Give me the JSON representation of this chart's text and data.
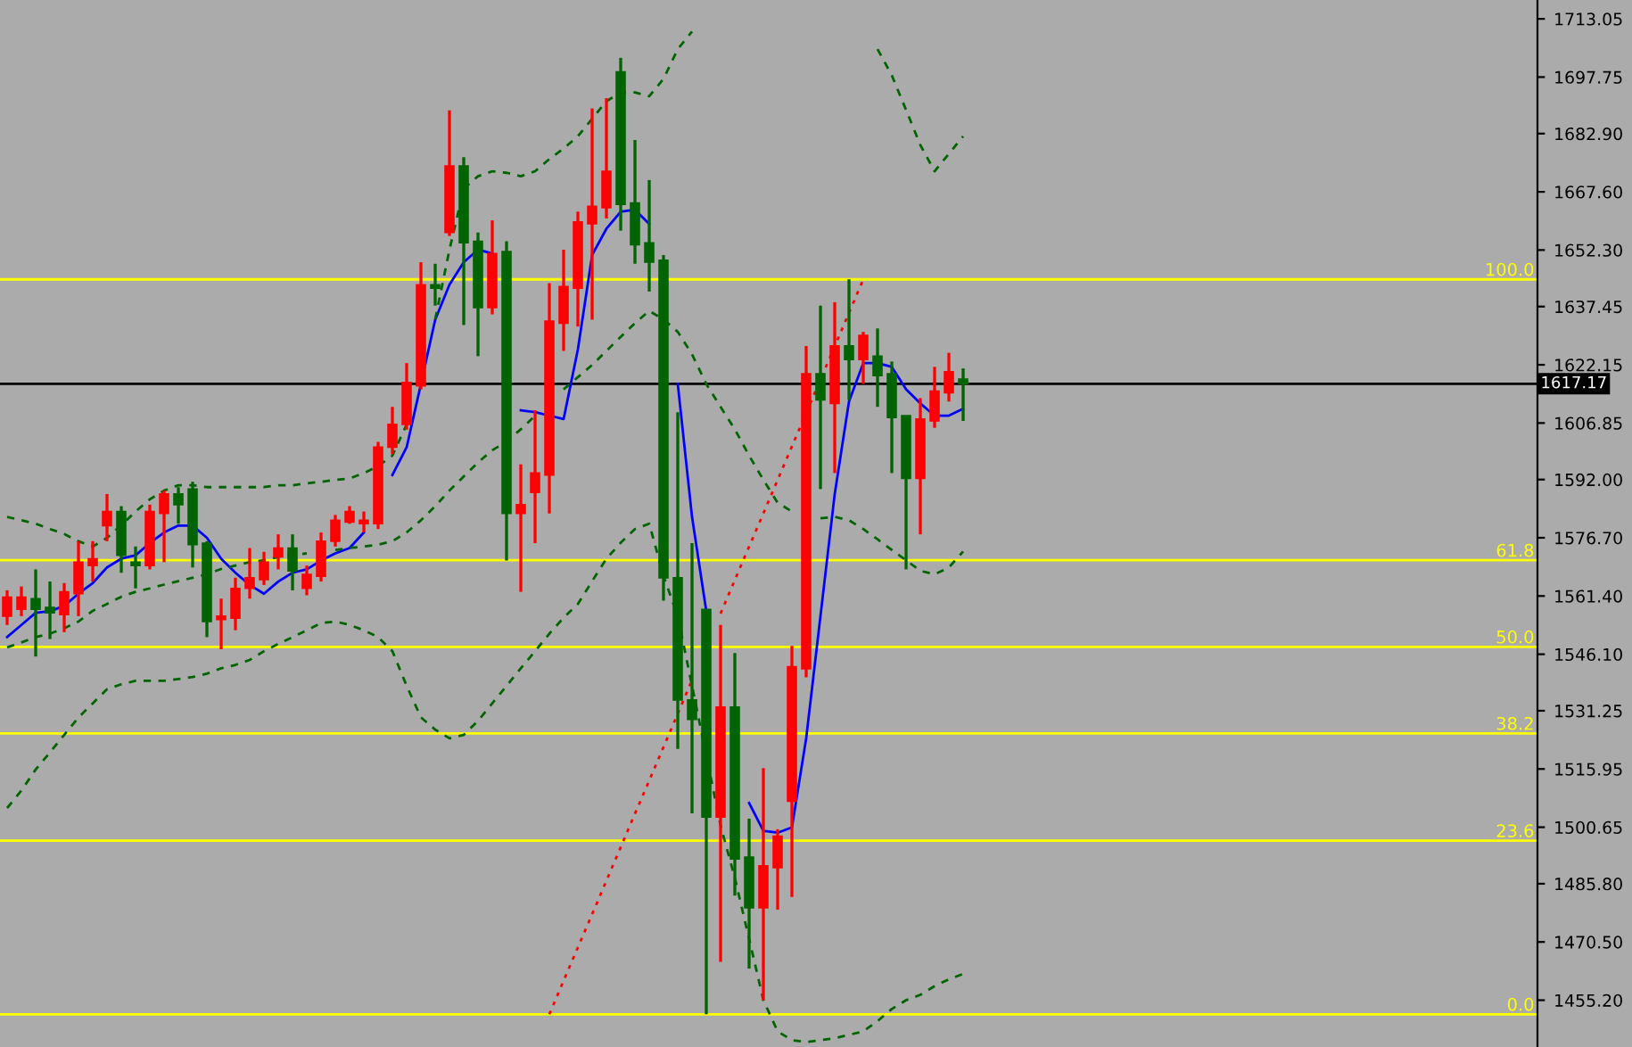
{
  "chart_data": {
    "type": "candlestick",
    "categories": [
      null,
      null,
      null,
      null,
      null,
      null,
      null,
      null,
      null,
      null,
      null,
      null,
      null,
      null,
      null,
      null,
      null,
      null,
      null,
      null,
      null,
      null,
      null,
      null,
      null,
      null,
      null,
      null,
      null,
      null,
      null,
      null,
      null,
      null,
      null,
      null,
      null,
      null,
      null,
      null,
      null,
      null,
      null,
      null,
      null,
      null,
      null,
      null,
      null,
      null,
      null,
      null,
      null,
      null,
      null,
      null,
      null,
      null,
      null,
      null,
      null,
      null,
      null,
      null,
      null,
      null,
      null,
      null
    ],
    "ohlc": [
      [
        1556.1,
        1562.9,
        1553.8,
        1561.1
      ],
      [
        1557.9,
        1563.9,
        1556.1,
        1561.1
      ],
      [
        1560.7,
        1568.4,
        1545.5,
        1557.9
      ],
      [
        1558.4,
        1565.2,
        1550.1,
        1557.0
      ],
      [
        1556.5,
        1564.8,
        1551.9,
        1562.5
      ],
      [
        1562.0,
        1575.8,
        1556.1,
        1570.3
      ],
      [
        1569.4,
        1575.8,
        1565.2,
        1571.2
      ],
      [
        1579.9,
        1588.2,
        1575.8,
        1583.6
      ],
      [
        1583.6,
        1585.0,
        1567.5,
        1572.1
      ],
      [
        1570.3,
        1574.4,
        1563.4,
        1569.4
      ],
      [
        1569.4,
        1585.4,
        1568.4,
        1583.6
      ],
      [
        1583.1,
        1589.1,
        1570.3,
        1588.2
      ],
      [
        1588.2,
        1590.0,
        1580.4,
        1585.4
      ],
      [
        1589.5,
        1591.4,
        1568.9,
        1574.9
      ],
      [
        1575.3,
        1575.8,
        1550.6,
        1554.7
      ],
      [
        1555.2,
        1560.7,
        1547.4,
        1556.1
      ],
      [
        1555.6,
        1566.2,
        1552.4,
        1563.4
      ],
      [
        1563.4,
        1574.0,
        1560.7,
        1566.2
      ],
      [
        1565.7,
        1573.0,
        1564.3,
        1570.3
      ],
      [
        1571.7,
        1577.6,
        1568.4,
        1574.0
      ],
      [
        1574.0,
        1577.6,
        1562.9,
        1568.0
      ],
      [
        1563.4,
        1569.4,
        1561.6,
        1567.1
      ],
      [
        1566.6,
        1578.1,
        1565.2,
        1575.8
      ],
      [
        1575.8,
        1582.7,
        1574.4,
        1581.3
      ],
      [
        1580.8,
        1585.0,
        1580.4,
        1583.6
      ],
      [
        1580.4,
        1583.6,
        1578.1,
        1581.3
      ],
      [
        1580.4,
        1601.9,
        1579.0,
        1600.5
      ],
      [
        1600.5,
        1611.1,
        1598.7,
        1606.5
      ],
      [
        1606.5,
        1622.6,
        1605.1,
        1617.5
      ],
      [
        1616.6,
        1649.1,
        1615.7,
        1643.2
      ],
      [
        1643.2,
        1648.7,
        1637.7,
        1642.3
      ],
      [
        1656.9,
        1689.0,
        1656.0,
        1674.4
      ],
      [
        1674.4,
        1676.7,
        1632.6,
        1654.2
      ],
      [
        1654.6,
        1656.9,
        1624.4,
        1637.2
      ],
      [
        1637.2,
        1660.1,
        1635.4,
        1651.4
      ],
      [
        1651.9,
        1654.6,
        1570.7,
        1583.1
      ],
      [
        1583.1,
        1596.0,
        1562.5,
        1585.4
      ],
      [
        1588.6,
        1610.2,
        1575.3,
        1593.7
      ],
      [
        1593.2,
        1643.6,
        1583.1,
        1633.6
      ],
      [
        1633.1,
        1652.4,
        1625.8,
        1642.7
      ],
      [
        1642.3,
        1662.4,
        1632.2,
        1659.7
      ],
      [
        1659.2,
        1689.5,
        1634.0,
        1663.8
      ],
      [
        1663.4,
        1692.2,
        1660.6,
        1673.0
      ],
      [
        1699.1,
        1702.8,
        1657.4,
        1664.3
      ],
      [
        1664.7,
        1681.2,
        1648.7,
        1653.7
      ],
      [
        1654.2,
        1670.7,
        1641.4,
        1649.1
      ],
      [
        1649.6,
        1651.0,
        1560.2,
        1566.2
      ],
      [
        1566.2,
        1609.7,
        1521.2,
        1534.1
      ],
      [
        1534.1,
        1575.3,
        1504.3,
        1529.0
      ],
      [
        1557.9,
        1557.9,
        1451.5,
        1503.3
      ],
      [
        1503.3,
        1553.8,
        1465.3,
        1532.2
      ],
      [
        1532.2,
        1546.4,
        1482.7,
        1492.3
      ],
      [
        1492.8,
        1502.9,
        1463.5,
        1479.5
      ],
      [
        1479.5,
        1516.2,
        1455.2,
        1490.5
      ],
      [
        1490.0,
        1500.1,
        1479.0,
        1498.3
      ],
      [
        1507.5,
        1548.3,
        1482.3,
        1542.8
      ],
      [
        1542.3,
        1627.1,
        1540.0,
        1619.8
      ],
      [
        1619.8,
        1637.7,
        1589.5,
        1612.9
      ],
      [
        1612.0,
        1638.6,
        1593.7,
        1627.1
      ],
      [
        1627.1,
        1644.6,
        1612.9,
        1623.5
      ],
      [
        1623.5,
        1630.8,
        1617.1,
        1629.9
      ],
      [
        1624.4,
        1631.7,
        1611.1,
        1619.3
      ],
      [
        1619.8,
        1623.0,
        1593.7,
        1608.3
      ],
      [
        1608.8,
        1608.8,
        1568.4,
        1592.3
      ],
      [
        1592.3,
        1613.4,
        1577.6,
        1607.9
      ],
      [
        1607.4,
        1621.6,
        1605.6,
        1615.2
      ],
      [
        1614.8,
        1625.3,
        1612.5,
        1620.3
      ],
      [
        1618.4,
        1621.2,
        1607.4,
        1617.2
      ]
    ],
    "colors": [
      "#ff0000",
      "#ff0000",
      "#006400",
      "#006400",
      "#ff0000",
      "#ff0000",
      "#ff0000",
      "#ff0000",
      "#006400",
      "#006400",
      "#ff0000",
      "#ff0000",
      "#006400",
      "#006400",
      "#006400",
      "#ff0000",
      "#ff0000",
      "#ff0000",
      "#ff0000",
      "#ff0000",
      "#006400",
      "#ff0000",
      "#ff0000",
      "#ff0000",
      "#ff0000",
      "#ff0000",
      "#ff0000",
      "#ff0000",
      "#ff0000",
      "#ff0000",
      "#006400",
      "#ff0000",
      "#006400",
      "#006400",
      "#ff0000",
      "#006400",
      "#ff0000",
      "#ff0000",
      "#ff0000",
      "#ff0000",
      "#ff0000",
      "#ff0000",
      "#ff0000",
      "#006400",
      "#006400",
      "#006400",
      "#006400",
      "#006400",
      "#006400",
      "#006400",
      "#ff0000",
      "#006400",
      "#006400",
      "#ff0000",
      "#ff0000",
      "#ff0000",
      "#ff0000",
      "#006400",
      "#ff0000",
      "#006400",
      "#ff0000",
      "#006400",
      "#006400",
      "#006400",
      "#ff0000",
      "#ff0000",
      "#ff0000",
      "#006400"
    ],
    "series": [
      {
        "type": "line",
        "color": "#0000ff",
        "line_style": "solid",
        "values": [
          1550.6,
          1553.8,
          1557.0,
          1557.4,
          1558.8,
          1562.0,
          1564.8,
          1568.9,
          1571.2,
          1572.1,
          1575.3,
          1578.1,
          1579.9,
          1579.9,
          1576.7,
          1571.2,
          1567.5,
          1564.3,
          1562.0,
          1565.2,
          1567.5,
          1568.4,
          1570.7,
          1572.6,
          1574.0,
          1578.1,
          null,
          1593.2,
          1600.5,
          1617.1,
          1634.0,
          1643.2,
          1649.1,
          1652.4,
          1651.4,
          null,
          1610.2,
          1609.7,
          1608.8,
          1607.9,
          1626.2,
          1651.0,
          1657.9,
          1662.4,
          1662.9,
          1659.2,
          null,
          1617.1,
          1582.2,
          1557.4,
          null,
          null,
          1507.0,
          1499.7,
          1499.2,
          1500.6,
          1524.0,
          1556.1,
          1588.2,
          1612.5,
          1622.6,
          1622.6,
          1621.6,
          1615.7,
          1612.0,
          1608.8,
          1608.8,
          1610.6
        ]
      },
      {
        "type": "line",
        "color": "#006400",
        "line_style": "dashed",
        "values": [
          1582.2,
          1581.3,
          1580.4,
          1579.0,
          1577.7,
          1575.8,
          1574.4,
          1576.7,
          1580.0,
          1583.6,
          1586.8,
          1589.1,
          1590.5,
          1590.5,
          1590.0,
          1590.0,
          1590.0,
          1590.0,
          1590.0,
          1590.5,
          1590.5,
          1591.0,
          1591.4,
          1591.9,
          1592.3,
          1593.7,
          1595.5,
          1598.3,
          1606.5,
          null,
          1634.1,
          1652.4,
          1668.4,
          1671.7,
          1673.0,
          1672.6,
          1671.7,
          1673.0,
          1676.2,
          1679.0,
          1682.2,
          1686.8,
          1691.4,
          1693.7,
          1693.7,
          1692.7,
          1697.3,
          1705.1,
          1709.7,
          null,
          null,
          null,
          null,
          null,
          null,
          null,
          null,
          null,
          null,
          null,
          null,
          1705.1,
          1698.2,
          1689.1,
          1679.9,
          1673.0,
          1677.6,
          1682.2
        ]
      },
      {
        "type": "line",
        "color": "#006400",
        "line_style": "dashed",
        "values": [
          1547.9,
          1549.2,
          1550.6,
          1551.5,
          1552.9,
          1554.7,
          1557.5,
          1559.3,
          1561.2,
          1562.5,
          1563.4,
          1564.4,
          1565.3,
          1566.2,
          1567.1,
          1568.5,
          1569.4,
          1570.3,
          1570.8,
          1571.7,
          1572.2,
          1572.6,
          null,
          1573.5,
          1574.0,
          1574.4,
          1574.9,
          1575.8,
          1578.1,
          1581.3,
          1585.0,
          1589.1,
          1592.8,
          1596.5,
          1599.7,
          1602.0,
          1605.2,
          1608.8,
          null,
          1615.7,
          1618.9,
          1622.1,
          1625.8,
          1629.5,
          1633.1,
          1636.3,
          1634.1,
          1630.8,
          1624.9,
          1617.1,
          1611.1,
          1605.2,
          1598.3,
          1591.9,
          1585.9,
          1583.6,
          null,
          1581.8,
          1582.2,
          1581.3,
          1579.0,
          1576.3,
          1573.5,
          1570.8,
          1568.0,
          1567.1,
          1568.9,
          1573.1
        ]
      },
      {
        "type": "line",
        "color": "#006400",
        "line_style": "dashed",
        "values": [
          1505.7,
          1510.3,
          1515.8,
          1520.3,
          1524.9,
          1529.5,
          1533.2,
          1536.9,
          1538.2,
          1539.1,
          1539.1,
          1539.1,
          1539.6,
          1540.1,
          1541.0,
          1542.4,
          1543.3,
          1544.6,
          1546.9,
          1548.8,
          1550.6,
          1552.4,
          1554.3,
          1554.7,
          1553.8,
          1552.4,
          1550.6,
          1546.9,
          1537.8,
          1529.5,
          1526.3,
          1524.0,
          1524.9,
          1528.6,
          1533.2,
          1537.8,
          1542.4,
          1546.9,
          1551.5,
          1555.7,
          1559.3,
          1565.3,
          1571.2,
          1575.4,
          1579.0,
          1580.4,
          1566.7,
          1556.1,
          1537.8,
          1519.4,
          1501.1,
          1487.3,
          1471.3,
          1455.2,
          1447.0,
          1444.7,
          1444.2,
          1444.7,
          1445.2,
          1446.1,
          1447.0,
          1449.7,
          1452.9,
          1455.2,
          1456.6,
          1458.9,
          1460.7,
          1462.1
        ]
      },
      {
        "type": "line",
        "color": "#ff0000",
        "line_style": "dotted",
        "values": [
          null,
          null,
          null,
          null,
          null,
          null,
          null,
          null,
          null,
          null,
          null,
          null,
          null,
          null,
          null,
          null,
          null,
          null,
          null,
          null,
          null,
          null,
          null,
          null,
          null,
          null,
          null,
          null,
          null,
          null,
          null,
          null,
          null,
          null,
          null,
          null,
          null,
          null,
          1451.5,
          1460.3,
          1469.1,
          1477.8,
          1486.6,
          1495.4,
          1504.2,
          1512.9,
          1521.7,
          1530.5,
          1539.3,
          null,
          1556.8,
          1565.6,
          1574.4,
          1583.1,
          1591.9,
          1600.7,
          1609.5,
          1618.3,
          1627.0,
          1635.8,
          1644.6,
          null,
          null,
          null,
          null,
          null,
          null,
          null
        ]
      }
    ],
    "ylim": [
      1442.9,
      1718
    ],
    "yticks": [
      {
        "value": 1455.2,
        "label": "1455.20"
      },
      {
        "value": 1470.5,
        "label": "1470.50"
      },
      {
        "value": 1485.8,
        "label": "1485.80"
      },
      {
        "value": 1500.65,
        "label": "1500.65"
      },
      {
        "value": 1515.95,
        "label": "1515.95"
      },
      {
        "value": 1531.25,
        "label": "1531.25"
      },
      {
        "value": 1546.1,
        "label": "1546.10"
      },
      {
        "value": 1561.4,
        "label": "1561.40"
      },
      {
        "value": 1576.7,
        "label": "1576.70"
      },
      {
        "value": 1592.0,
        "label": "1592.00"
      },
      {
        "value": 1606.85,
        "label": "1606.85"
      },
      {
        "value": 1622.15,
        "label": "1622.15"
      },
      {
        "value": 1637.45,
        "label": "1637.45"
      },
      {
        "value": 1652.3,
        "label": "1652.30"
      },
      {
        "value": 1667.6,
        "label": "1667.60"
      },
      {
        "value": 1682.9,
        "label": "1682.90"
      },
      {
        "value": 1697.75,
        "label": "1697.75"
      },
      {
        "value": 1713.05,
        "label": "1713.05"
      }
    ],
    "ref_lines": [
      {
        "axis": "y",
        "value": 1617.17,
        "label": "1617.17",
        "color": "#000000"
      },
      {
        "axis": "y",
        "value": 1644.6,
        "color": "#ffff00"
      },
      {
        "axis": "y",
        "value": 1570.8,
        "color": "#ffff00"
      },
      {
        "axis": "y",
        "value": 1548.05,
        "color": "#ffff00"
      },
      {
        "axis": "y",
        "value": 1525.3,
        "color": "#ffff00"
      },
      {
        "axis": "y",
        "value": 1497.1,
        "color": "#ffff00"
      },
      {
        "axis": "y",
        "value": 1451.5,
        "color": "#ffff00"
      }
    ],
    "annotations": [
      {
        "text": "100.0",
        "y": 1644.6
      },
      {
        "text": "61.8",
        "y": 1570.8
      },
      {
        "text": "50.0",
        "y": 1548.05
      },
      {
        "text": "38.2",
        "y": 1525.3
      },
      {
        "text": "23.6",
        "y": 1497.1
      },
      {
        "text": "0.0",
        "y": 1451.5
      }
    ],
    "tick_labels": "y"
  }
}
